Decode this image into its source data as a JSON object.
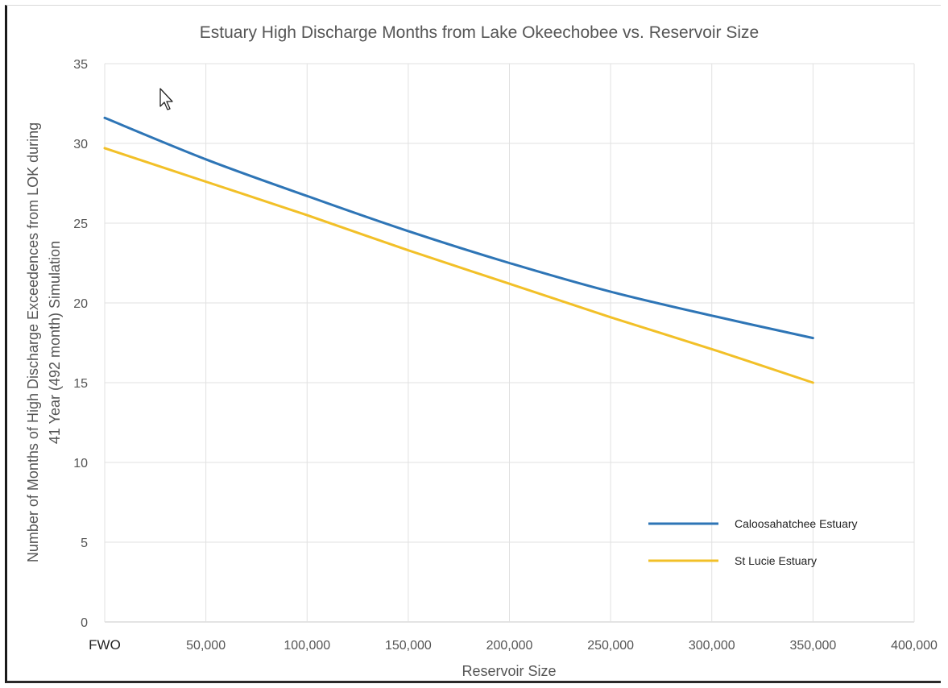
{
  "chart_data": {
    "type": "line",
    "title": "Estuary High Discharge Months from Lake Okeechobee vs. Reservoir Size",
    "xlabel": "Reservoir Size",
    "ylabel_line1": "Number of Months of High Discharge Exceedences from LOK during",
    "ylabel_line2": "41 Year (492 month) Simulation",
    "xlim": [
      0,
      400000
    ],
    "ylim": [
      0,
      35
    ],
    "x_ticks": [
      {
        "value": 0,
        "label": "FWO"
      },
      {
        "value": 50000,
        "label": "50,000"
      },
      {
        "value": 100000,
        "label": "100,000"
      },
      {
        "value": 150000,
        "label": "150,000"
      },
      {
        "value": 200000,
        "label": "200,000"
      },
      {
        "value": 250000,
        "label": "250,000"
      },
      {
        "value": 300000,
        "label": "300,000"
      },
      {
        "value": 350000,
        "label": "350,000"
      },
      {
        "value": 400000,
        "label": "400,000"
      }
    ],
    "y_ticks": [
      {
        "value": 0,
        "label": "0"
      },
      {
        "value": 5,
        "label": "5"
      },
      {
        "value": 10,
        "label": "10"
      },
      {
        "value": 15,
        "label": "15"
      },
      {
        "value": 20,
        "label": "20"
      },
      {
        "value": 25,
        "label": "25"
      },
      {
        "value": 30,
        "label": "30"
      },
      {
        "value": 35,
        "label": "35"
      }
    ],
    "grid": true,
    "legend_position": "bottom-right",
    "series": [
      {
        "name": "Caloosahatchee Estuary",
        "color": "#2e75b6",
        "x": [
          0,
          50000,
          100000,
          150000,
          200000,
          250000,
          300000,
          350000
        ],
        "y": [
          31.6,
          29.0,
          26.7,
          24.5,
          22.5,
          20.7,
          19.2,
          17.8
        ]
      },
      {
        "name": "St Lucie Estuary",
        "color": "#f2c028",
        "x": [
          0,
          50000,
          100000,
          150000,
          200000,
          250000,
          300000,
          350000
        ],
        "y": [
          29.7,
          27.6,
          25.5,
          23.3,
          21.2,
          19.1,
          17.1,
          15.0
        ]
      }
    ]
  }
}
